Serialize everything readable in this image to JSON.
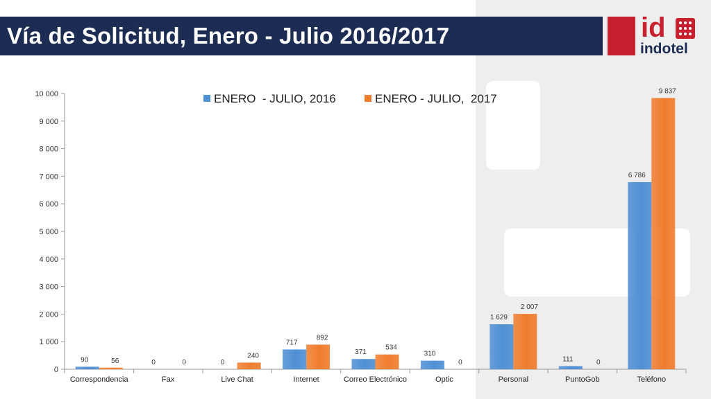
{
  "header": {
    "title": "Vía de Solicitud, Enero - Julio 2016/2017"
  },
  "logo": {
    "mark": "id",
    "name": "indotel",
    "icon": "keypad-icon"
  },
  "colors": {
    "header_bg": "#1d2c52",
    "brand_red": "#c8202f",
    "series_2016": "#4f8fd4",
    "series_2017": "#f07d2e"
  },
  "chart_data": {
    "type": "bar",
    "categories": [
      "Correspondencia",
      "Fax",
      "Live Chat",
      "Internet",
      "Correo Electrónico",
      "Optic",
      "Personal",
      "PuntoGob",
      "Teléfono"
    ],
    "series": [
      {
        "name": "ENERO  - JULIO, 2016",
        "values": [
          90,
          0,
          0,
          717,
          371,
          310,
          1629,
          111,
          6786
        ],
        "labels": [
          "90",
          "0",
          "0",
          "717",
          "371",
          "310",
          "1 629",
          "111",
          "6 786"
        ]
      },
      {
        "name": "ENERO - JULIO,  2017",
        "values": [
          56,
          0,
          240,
          892,
          534,
          0,
          2007,
          0,
          9837
        ],
        "labels": [
          "56",
          "0",
          "240",
          "892",
          "534",
          "0",
          "2 007",
          "0",
          "9 837"
        ]
      }
    ],
    "ylim": [
      0,
      10000
    ],
    "yticks": [
      0,
      1000,
      2000,
      3000,
      4000,
      5000,
      6000,
      7000,
      8000,
      9000,
      10000
    ],
    "ytick_labels": [
      "0",
      "1 000",
      "2 000",
      "3 000",
      "4 000",
      "5 000",
      "6 000",
      "7 000",
      "8 000",
      "9 000",
      "10 000"
    ],
    "legend_position": "top",
    "grid": false
  }
}
